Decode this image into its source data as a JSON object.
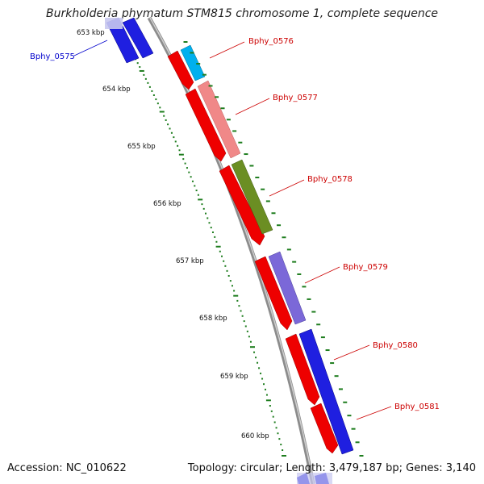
{
  "title": "Burkholderia phymatum STM815 chromosome 1, complete sequence",
  "footer": {
    "accession": "Accession: NC_010622",
    "summary": "Topology: circular; Length: 3,479,187 bp; Genes: 3,140"
  },
  "colors": {
    "backbone": "#8c8c8c",
    "tick": "#1e7d1e",
    "label_red": "#cc0000",
    "label_blue": "#0000cc"
  },
  "kbp_labels": [
    "653 kbp",
    "654 kbp",
    "655 kbp",
    "656 kbp",
    "657 kbp",
    "658 kbp",
    "659 kbp",
    "660 kbp"
  ],
  "gene_labels": [
    {
      "text": "Bphy_0575",
      "color": "#0000cc"
    },
    {
      "text": "Bphy_0576",
      "color": "#cc0000"
    },
    {
      "text": "Bphy_0577",
      "color": "#cc0000"
    },
    {
      "text": "Bphy_0578",
      "color": "#cc0000"
    },
    {
      "text": "Bphy_0579",
      "color": "#cc0000"
    },
    {
      "text": "Bphy_0580",
      "color": "#cc0000"
    },
    {
      "text": "Bphy_0581",
      "color": "#cc0000"
    }
  ]
}
